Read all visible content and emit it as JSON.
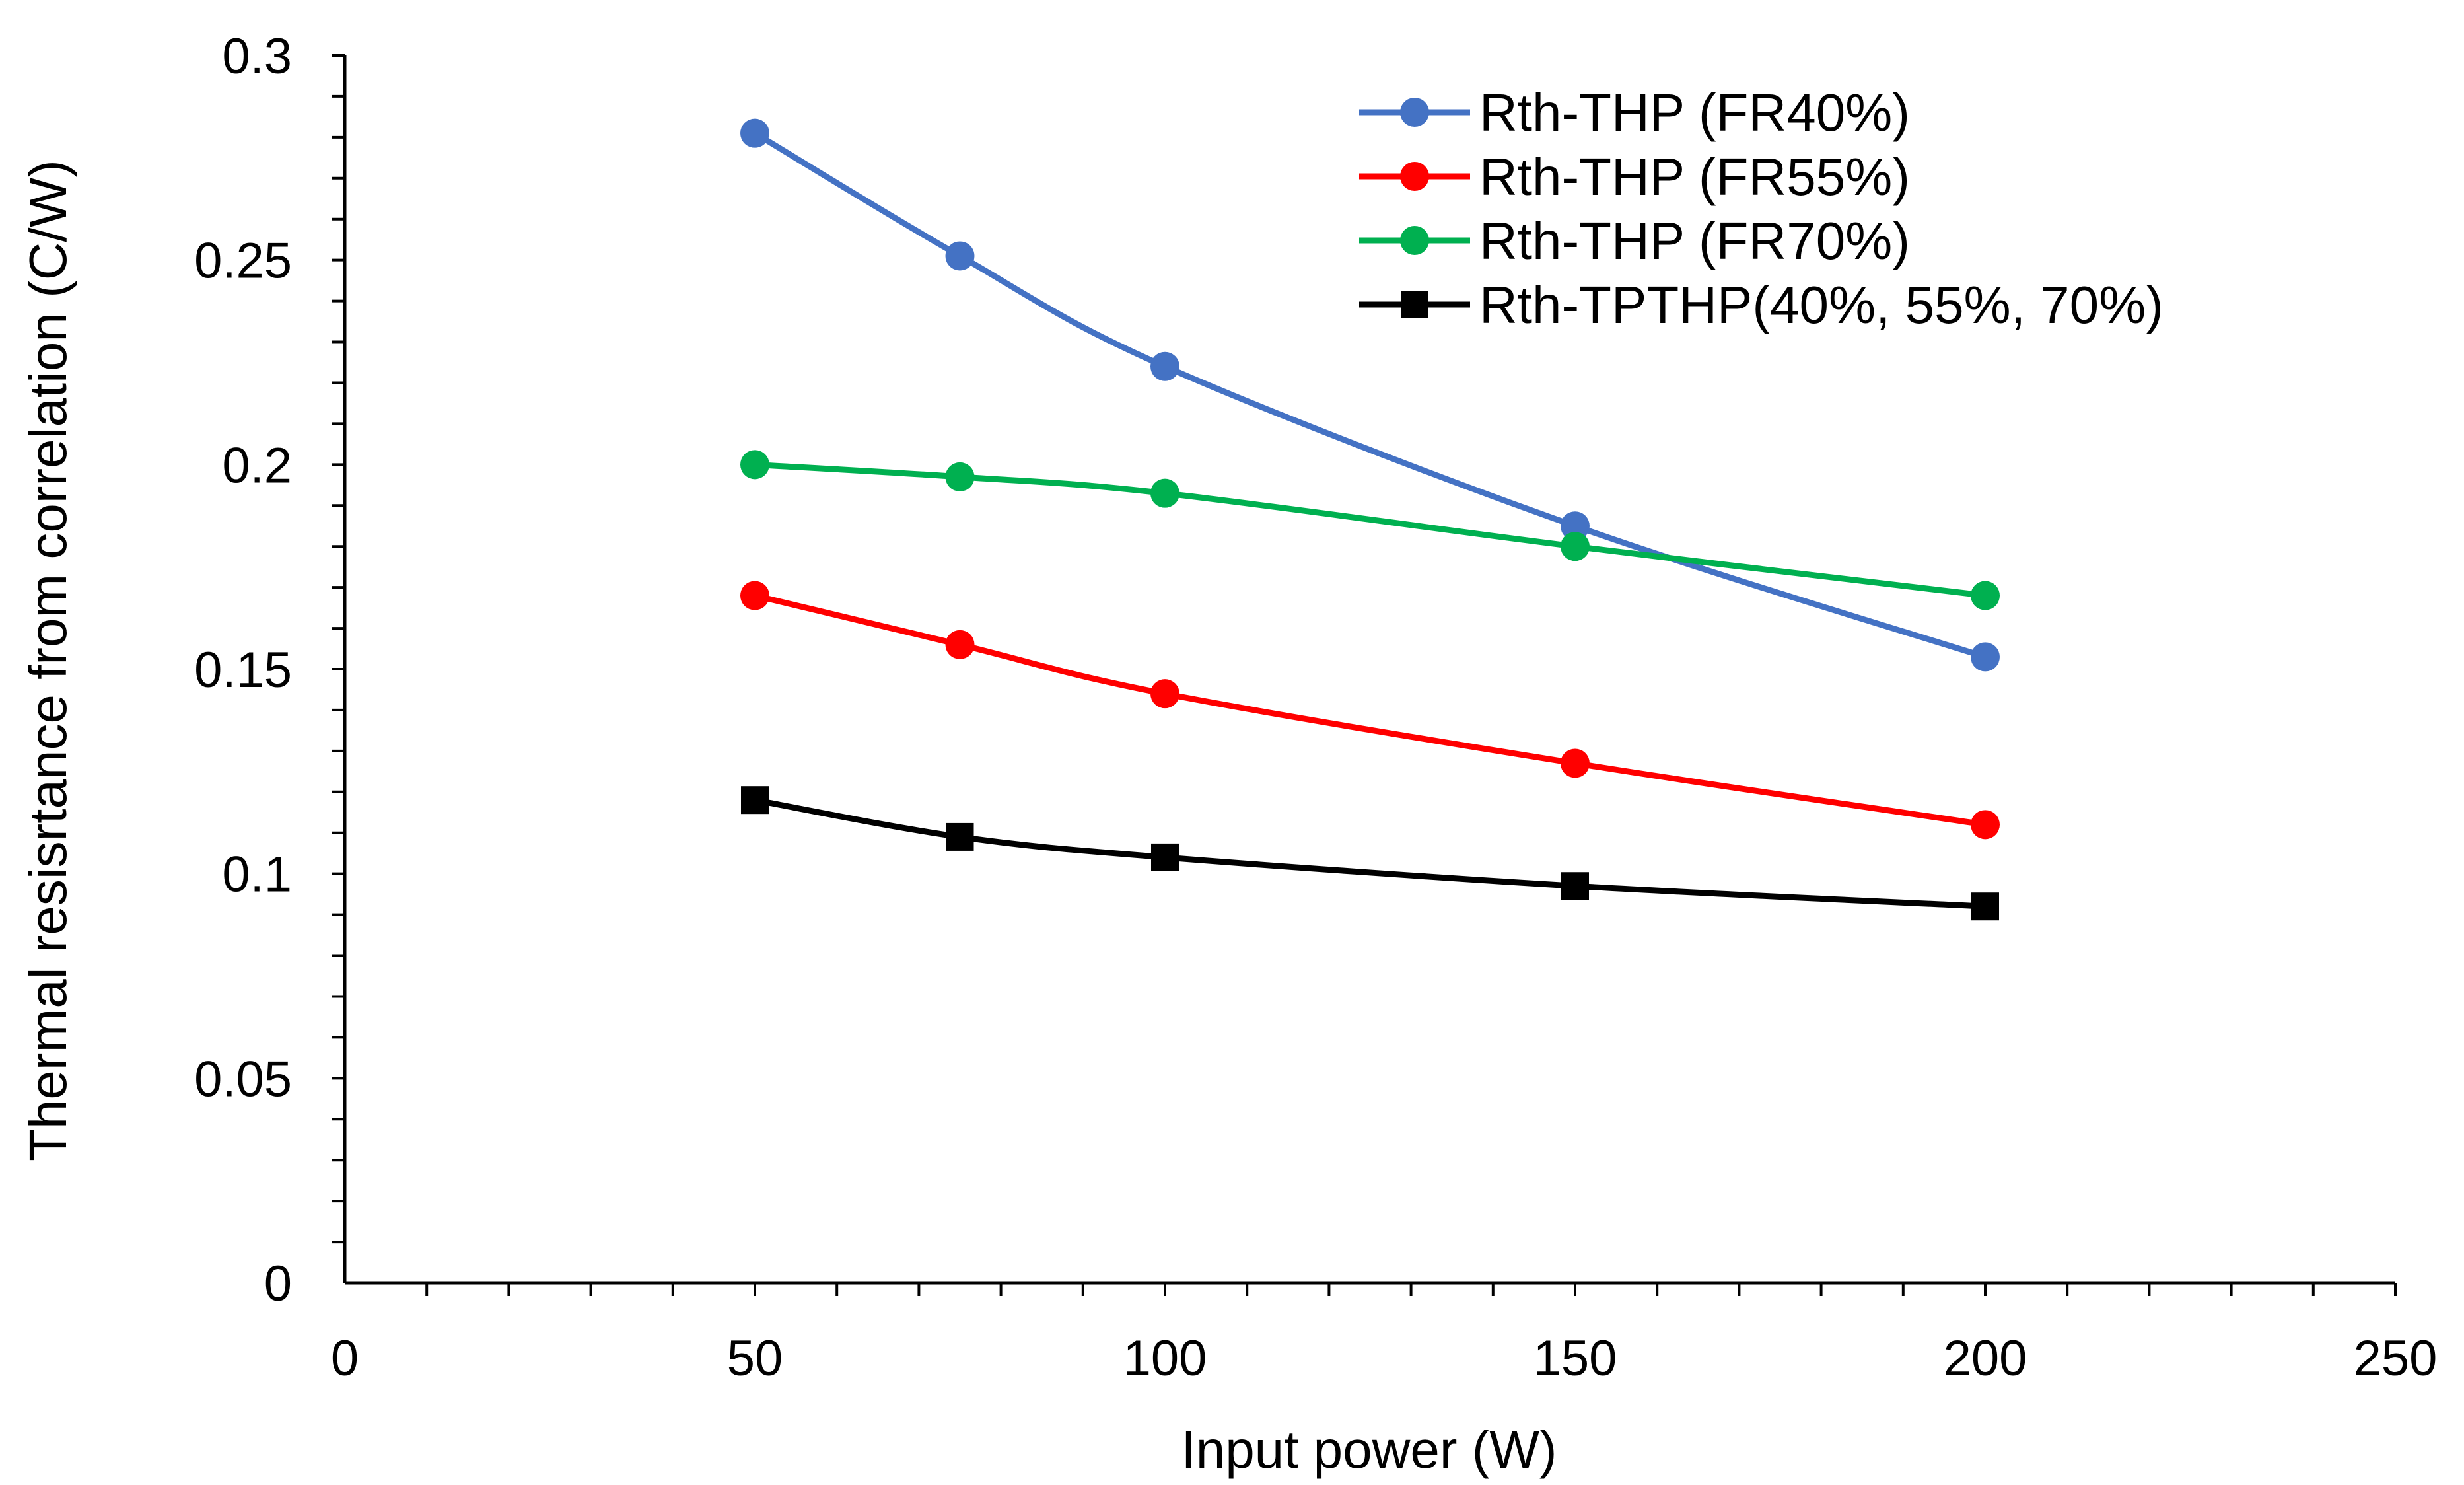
{
  "chart_data": {
    "type": "line",
    "title": "",
    "xlabel": "Input power (W)",
    "ylabel": "Thermal resisrtance from correlation (C/W)",
    "xlim": [
      0,
      250
    ],
    "ylim": [
      0,
      0.3
    ],
    "x_ticks": [
      "0",
      "50",
      "100",
      "150",
      "200",
      "250"
    ],
    "y_ticks": [
      "0",
      "0.05",
      "0.1",
      "0.15",
      "0.2",
      "0.25",
      "0.3"
    ],
    "x_minor_step": 10,
    "y_minor_step": 0.01,
    "grid": false,
    "legend_position": "top-right",
    "series": [
      {
        "name": "Rth-THP (FR40%)",
        "color": "#4472C4",
        "marker": "circle",
        "smooth": true,
        "x": [
          50,
          75,
          100,
          150,
          200
        ],
        "y": [
          0.281,
          0.251,
          0.224,
          0.185,
          0.153
        ]
      },
      {
        "name": "Rth-THP (FR55%)",
        "color": "#FF0000",
        "marker": "circle",
        "smooth": true,
        "x": [
          50,
          75,
          100,
          150,
          200
        ],
        "y": [
          0.168,
          0.156,
          0.144,
          0.127,
          0.112
        ]
      },
      {
        "name": "Rth-THP (FR70%)",
        "color": "#00B050",
        "marker": "circle",
        "smooth": true,
        "x": [
          50,
          75,
          100,
          150,
          200
        ],
        "y": [
          0.2,
          0.197,
          0.193,
          0.18,
          0.168
        ]
      },
      {
        "name": "Rth-TPTHP(40%, 55%, 70%)",
        "color": "#000000",
        "marker": "square",
        "smooth": true,
        "x": [
          50,
          75,
          100,
          150,
          200
        ],
        "y": [
          0.118,
          0.109,
          0.104,
          0.097,
          0.092
        ]
      }
    ]
  }
}
